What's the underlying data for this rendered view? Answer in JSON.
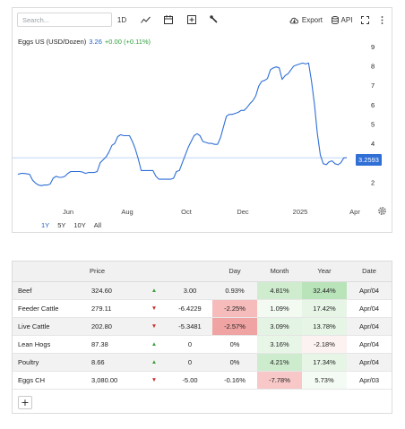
{
  "toolbar": {
    "search_placeholder": "Search...",
    "interval_label": "1D",
    "export_label": "Export",
    "api_label": "API"
  },
  "legend": {
    "name": "Eggs US (USD/Dozen)",
    "price": "3.26",
    "change": "+0.00 (+0.11%)"
  },
  "price_tag": "3.2593",
  "ranges": [
    "1Y",
    "5Y",
    "10Y",
    "All"
  ],
  "colors": {
    "line": "#2f6fd6",
    "up": "#3a9d3f",
    "down": "#cc2b2b",
    "price_tag_bg": "#2f6fd6"
  },
  "chart_data": {
    "type": "line",
    "title": "",
    "xlabel": "",
    "ylabel": "",
    "x_tick_labels": [
      "Jun",
      "Aug",
      "Oct",
      "Dec",
      "2025",
      "Apr"
    ],
    "y_tick_labels": [
      "2",
      "3",
      "4",
      "5",
      "6",
      "7",
      "8",
      "9"
    ],
    "ylim": [
      1.0,
      9.6
    ],
    "last_value": 3.2593,
    "series": [
      {
        "values": [
          2.4,
          2.45,
          2.45,
          2.43,
          2.4,
          2.1,
          1.95,
          1.85,
          1.82,
          1.85,
          1.85,
          1.9,
          2.2,
          2.3,
          2.25,
          2.25,
          2.3,
          2.45,
          2.55,
          2.55,
          2.55,
          2.55,
          2.52,
          2.45,
          2.5,
          2.5,
          2.5,
          2.55,
          3.0,
          3.15,
          3.3,
          3.55,
          3.9,
          4.0,
          4.35,
          4.45,
          4.4,
          4.4,
          4.4,
          4.1,
          3.7,
          3.2,
          2.6,
          2.6,
          2.6,
          2.6,
          2.6,
          2.3,
          2.15,
          2.15,
          2.15,
          2.15,
          2.15,
          2.2,
          2.55,
          2.6,
          3.0,
          3.4,
          3.8,
          4.1,
          4.4,
          4.5,
          4.4,
          4.1,
          4.05,
          4.0,
          4.0,
          3.95,
          3.95,
          4.3,
          4.85,
          5.4,
          5.5,
          5.5,
          5.55,
          5.6,
          5.7,
          5.7,
          5.85,
          6.05,
          6.2,
          6.45,
          6.95,
          7.2,
          7.25,
          7.35,
          7.8,
          7.9,
          7.95,
          7.9,
          7.3,
          7.5,
          7.6,
          7.8,
          8.0,
          8.05,
          8.1,
          8.15,
          8.1,
          8.15,
          7.2,
          6.0,
          4.5,
          3.4,
          2.95,
          2.9,
          3.05,
          3.1,
          2.95,
          2.9,
          3.0,
          3.25,
          3.2593
        ]
      }
    ]
  },
  "table": {
    "headers": [
      "",
      "Price",
      "",
      "",
      "Day",
      "Month",
      "Year",
      "Date"
    ],
    "rows": [
      {
        "name": "Beef",
        "price": "324.60",
        "dir": "up",
        "change": "3.00",
        "day": "0.93%",
        "month": "4.81%",
        "year": "32.44%",
        "date": "Apr/04"
      },
      {
        "name": "Feeder Cattle",
        "price": "279.11",
        "dir": "down",
        "change": "-6.4229",
        "day": "-2.25%",
        "month": "1.09%",
        "year": "17.42%",
        "date": "Apr/04"
      },
      {
        "name": "Live Cattle",
        "price": "202.80",
        "dir": "down",
        "change": "-5.3481",
        "day": "-2.57%",
        "month": "3.09%",
        "year": "13.78%",
        "date": "Apr/04"
      },
      {
        "name": "Lean Hogs",
        "price": "87.38",
        "dir": "up",
        "change": "0",
        "day": "0%",
        "month": "3.16%",
        "year": "-2.18%",
        "date": "Apr/04"
      },
      {
        "name": "Poultry",
        "price": "8.66",
        "dir": "up",
        "change": "0",
        "day": "0%",
        "month": "4.21%",
        "year": "17.34%",
        "date": "Apr/04"
      },
      {
        "name": "Eggs CH",
        "price": "3,080.00",
        "dir": "down",
        "change": "-5.00",
        "day": "-0.16%",
        "month": "-7.78%",
        "year": "5.73%",
        "date": "Apr/03"
      }
    ],
    "cell_colors": {
      "0.month": "#cfeccf",
      "0.year": "#b9e4ba",
      "1.day": "#f6bcbc",
      "1.month": "#f2faf2",
      "1.year": "#e6f5e6",
      "2.day": "#f0a3a3",
      "2.month": "#e4f4e4",
      "2.year": "#e6f5e6",
      "3.month": "#e8f6e8",
      "3.year": "#fdf2f2",
      "4.month": "#cdebcd",
      "4.year": "#e6f5e6",
      "5.month": "#f8c8c8",
      "5.year": "#f4fbf4"
    },
    "add_label": "+"
  }
}
